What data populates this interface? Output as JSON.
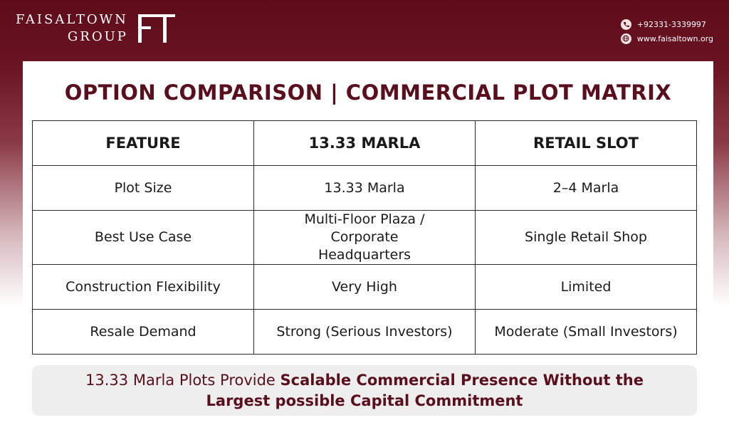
{
  "brand": {
    "line1": "FAISALTOWN",
    "line2": "GROUP",
    "logo_icon": "ft-monogram-icon"
  },
  "contact": {
    "phone": "+92331-3339997",
    "website": "www.faisaltown.org",
    "phone_icon": "phone-icon",
    "web_icon": "globe-icon"
  },
  "title": "OPTION COMPARISON | COMMERCIAL PLOT MATRIX",
  "table": {
    "headers": [
      "FEATURE",
      "13.33 MARLA",
      "RETAIL SLOT"
    ],
    "rows": [
      [
        "Plot Size",
        "13.33 Marla",
        "2–4 Marla"
      ],
      [
        "Best Use Case",
        "Multi-Floor Plaza / Corporate Headquarters",
        "Single Retail Shop"
      ],
      [
        "Construction Flexibility",
        "Very High",
        "Limited"
      ],
      [
        "Resale Demand",
        "Strong (Serious Investors)",
        "Moderate (Small Investors)"
      ]
    ]
  },
  "banner": {
    "prefix": "13.33 Marla Plots Provide ",
    "bold": "Scalable Commercial Presence Without the Largest possible Capital Commitment"
  },
  "colors": {
    "maroon": "#5e0c1a",
    "title": "#5a0f1c",
    "banner_bg": "#efeeee"
  }
}
